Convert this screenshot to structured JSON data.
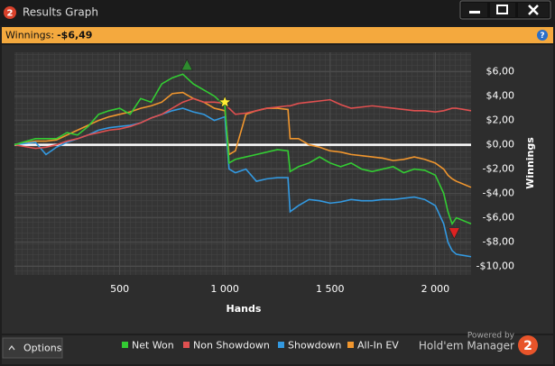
{
  "window": {
    "icon": "2",
    "title": "Results Graph"
  },
  "status": {
    "label": "Winnings:",
    "value": "-$6,49",
    "help": "?"
  },
  "footer": {
    "options": "Options",
    "powered": "Powered by",
    "brand": "Hold'em Manager",
    "logo": "2"
  },
  "chart_data": {
    "type": "line",
    "x_label": "Hands",
    "y_label": "Winnings",
    "x": [
      0,
      100,
      150,
      200,
      250,
      300,
      350,
      400,
      450,
      500,
      550,
      600,
      650,
      700,
      750,
      800,
      850,
      900,
      950,
      1000,
      1020,
      1050,
      1100,
      1150,
      1200,
      1250,
      1300,
      1310,
      1350,
      1400,
      1450,
      1500,
      1550,
      1600,
      1650,
      1700,
      1750,
      1800,
      1850,
      1900,
      1950,
      2000,
      2040,
      2060,
      2080,
      2100,
      2170
    ],
    "series": [
      {
        "name": "Net Won",
        "color": "#33cc33",
        "values": [
          0,
          0.5,
          0.5,
          0.5,
          1.0,
          0.8,
          1.5,
          2.5,
          2.8,
          3.0,
          2.5,
          3.8,
          3.5,
          5.0,
          5.5,
          5.8,
          5.0,
          4.5,
          4.0,
          3.2,
          -1.5,
          -1.2,
          -1.0,
          -0.8,
          -0.6,
          -0.4,
          -0.5,
          -2.2,
          -1.8,
          -1.5,
          -1.0,
          -1.5,
          -1.8,
          -1.5,
          -2.0,
          -2.2,
          -2.0,
          -1.8,
          -2.3,
          -2.0,
          -2.1,
          -2.5,
          -4.0,
          -5.5,
          -6.5,
          -6.0,
          -6.5
        ]
      },
      {
        "name": "Non Showdown",
        "color": "#e05050",
        "values": [
          0,
          -0.3,
          -0.2,
          0,
          0.3,
          0.5,
          0.8,
          1.0,
          1.2,
          1.3,
          1.5,
          1.8,
          2.2,
          2.5,
          3.0,
          3.5,
          3.8,
          3.5,
          3.5,
          3.4,
          3.0,
          2.5,
          2.6,
          2.8,
          3.0,
          3.1,
          3.2,
          3.2,
          3.4,
          3.5,
          3.6,
          3.7,
          3.3,
          3.0,
          3.1,
          3.2,
          3.1,
          3.0,
          2.9,
          2.8,
          2.8,
          2.7,
          2.8,
          2.9,
          3.0,
          3.0,
          2.8
        ]
      },
      {
        "name": "Showdown",
        "color": "#3399e0",
        "values": [
          0,
          0.2,
          -0.8,
          -0.2,
          0.2,
          0.5,
          0.8,
          1.2,
          1.4,
          1.5,
          1.6,
          1.8,
          2.2,
          2.5,
          2.8,
          3.0,
          2.7,
          2.5,
          2.0,
          2.3,
          -2.0,
          -2.3,
          -2.0,
          -3.0,
          -2.8,
          -2.7,
          -2.7,
          -5.5,
          -5.0,
          -4.5,
          -4.6,
          -4.8,
          -4.7,
          -4.5,
          -4.6,
          -4.6,
          -4.5,
          -4.5,
          -4.4,
          -4.3,
          -4.5,
          -5.0,
          -6.5,
          -8.0,
          -8.7,
          -9.0,
          -9.2
        ]
      },
      {
        "name": "All-In EV",
        "color": "#f0962e",
        "values": [
          0,
          0.3,
          0.3,
          0.4,
          0.8,
          1.2,
          1.6,
          2.0,
          2.3,
          2.5,
          2.7,
          3.0,
          3.2,
          3.5,
          4.2,
          4.3,
          3.8,
          3.5,
          3.0,
          2.8,
          -0.8,
          -0.5,
          2.5,
          2.8,
          3.0,
          3.0,
          2.9,
          0.5,
          0.5,
          0.0,
          -0.2,
          -0.5,
          -0.6,
          -0.8,
          -0.9,
          -1.0,
          -1.1,
          -1.3,
          -1.2,
          -1.0,
          -1.2,
          -1.5,
          -2.0,
          -2.5,
          -2.8,
          -3.0,
          -3.5
        ]
      }
    ],
    "markers": [
      {
        "shape": "triangle-up",
        "color": "#2e8b2e",
        "x": 820,
        "y": 6.5
      },
      {
        "shape": "star",
        "color": "#ffee33",
        "x": 1000,
        "y": 3.5
      },
      {
        "shape": "triangle-down",
        "color": "#dd2222",
        "x": 2090,
        "y": -7.2
      }
    ],
    "xlim": [
      0,
      2170
    ],
    "ylim": [
      -10.7,
      7.6
    ],
    "xticks": [
      500,
      {
        "value": 1000,
        "label": "1 000"
      },
      {
        "value": 1500,
        "label": "1 500"
      },
      {
        "value": 2000,
        "label": "2 000"
      }
    ],
    "yticks": [
      {
        "value": 6,
        "label": "$6,00"
      },
      {
        "value": 4,
        "label": "$4,00"
      },
      {
        "value": 2,
        "label": "$2,00"
      },
      {
        "value": 0,
        "label": "$0,00"
      },
      {
        "value": -2,
        "label": "-$2,00"
      },
      {
        "value": -4,
        "label": "-$4,00"
      },
      {
        "value": -6,
        "label": "-$6,00"
      },
      {
        "value": -8,
        "label": "-$8,00"
      },
      {
        "value": -10,
        "label": "-$10,00"
      }
    ],
    "grid": true,
    "zero_line": true
  }
}
